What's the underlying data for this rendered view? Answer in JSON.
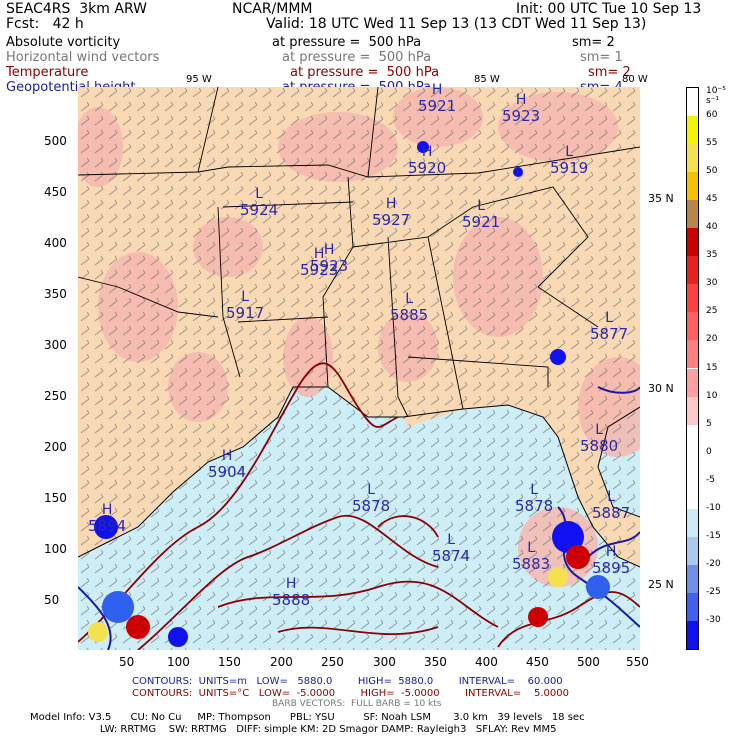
{
  "header": {
    "model": "SEAC4RS  3km ARW",
    "fcst": "Fcst:   42 h",
    "center": "NCAR/MMM",
    "init": "Init: 00 UTC Tue 10 Sep 13",
    "valid": "Valid: 18 UTC Wed 11 Sep 13 (13 CDT Wed 11 Sep 13)"
  },
  "fields": [
    {
      "name": "Absolute vorticity",
      "pressure": "at pressure =  500 hPa",
      "sm": "sm= 2",
      "color": "#000000"
    },
    {
      "name": "Horizontal wind vectors",
      "pressure": "at pressure =  500 hPa",
      "sm": "sm= 1",
      "color": "#888888"
    },
    {
      "name": "Temperature",
      "pressure": "at pressure =  500 hPa",
      "sm": "sm= 2",
      "color": "#8b0000"
    },
    {
      "name": "Geopotential height",
      "pressure": "at pressure =  500 hPa",
      "sm": "sm= 4",
      "color": "#1a1aa0"
    }
  ],
  "map": {
    "lon_labels": [
      "95 W",
      "85 W",
      "80 W"
    ],
    "lat_labels": [
      "35 N",
      "30 N",
      "25 N"
    ],
    "x_ticks": [
      "50",
      "100",
      "150",
      "200",
      "250",
      "300",
      "350",
      "400",
      "450",
      "500",
      "550"
    ],
    "y_ticks": [
      "500",
      "450",
      "400",
      "350",
      "300",
      "250",
      "200",
      "150",
      "100",
      "50"
    ],
    "highs_lows": [
      {
        "type": "H",
        "value": "5921"
      },
      {
        "type": "H",
        "value": "5923"
      },
      {
        "type": "H",
        "value": "5920"
      },
      {
        "type": "L",
        "value": "5919"
      },
      {
        "type": "L",
        "value": "5924"
      },
      {
        "type": "H",
        "value": "5927"
      },
      {
        "type": "L",
        "value": "5921"
      },
      {
        "type": "H",
        "value": "5923"
      },
      {
        "type": "H",
        "value": "5923"
      },
      {
        "type": "L",
        "value": "5917"
      },
      {
        "type": "L",
        "value": "5885"
      },
      {
        "type": "L",
        "value": "5877"
      },
      {
        "type": "L",
        "value": "5880"
      },
      {
        "type": "H",
        "value": "5904"
      },
      {
        "type": "L",
        "value": "5878"
      },
      {
        "type": "L",
        "value": "5878"
      },
      {
        "type": "L",
        "value": "5887"
      },
      {
        "type": "H",
        "value": "5894"
      },
      {
        "type": "L",
        "value": "5874"
      },
      {
        "type": "L",
        "value": "5883"
      },
      {
        "type": "H",
        "value": "5895"
      },
      {
        "type": "H",
        "value": "5888"
      }
    ],
    "colors": {
      "land": "#f8d9b4",
      "sea": "#cdeef7",
      "pos_vort": "#f6b7b0",
      "height_contour": "#1a1aa0",
      "temp_contour": "#8b0000"
    }
  },
  "colorbar": {
    "unit": "10⁻⁵ s⁻¹",
    "labels": [
      "60",
      "55",
      "50",
      "45",
      "40",
      "35",
      "30",
      "25",
      "20",
      "15",
      "10",
      "5",
      "0",
      "-5",
      "-10",
      "-15",
      "-20",
      "-25",
      "-30"
    ],
    "colors": [
      "#ffffff",
      "#f5f500",
      "#f5e150",
      "#f5c000",
      "#b8864b",
      "#cc0000",
      "#e82020",
      "#ff4040",
      "#ff6060",
      "#ff8080",
      "#ffa0a0",
      "#ffc8c8",
      "#ffffff",
      "#ffffff",
      "#ffffff",
      "#cfeaf5",
      "#a8c8f0",
      "#7090e8",
      "#4060f0",
      "#1010f0"
    ]
  },
  "footer": {
    "contours_blue": "CONTOURS:  UNITS=m   LOW=   5880.0        HIGH=  5880.0        INTERVAL=    60.000",
    "contours_red": "CONTOURS:  UNITS=°C   LOW=  -5.0000        HIGH=  -5.0000        INTERVAL=    5.0000",
    "barb": "BARB VECTORS:  FULL BARB = 10 kts",
    "info1": "Model Info: V3.5      CU: No Cu     MP: Thompson      PBL: YSU         SF: Noah LSM       3.0 km   39 levels   18 sec",
    "info2": "                      LW: RRTMG    SW: RRTMG   DIFF: simple KM: 2D Smagor DAMP: Rayleigh3   SFLAY: Rev MM5"
  }
}
